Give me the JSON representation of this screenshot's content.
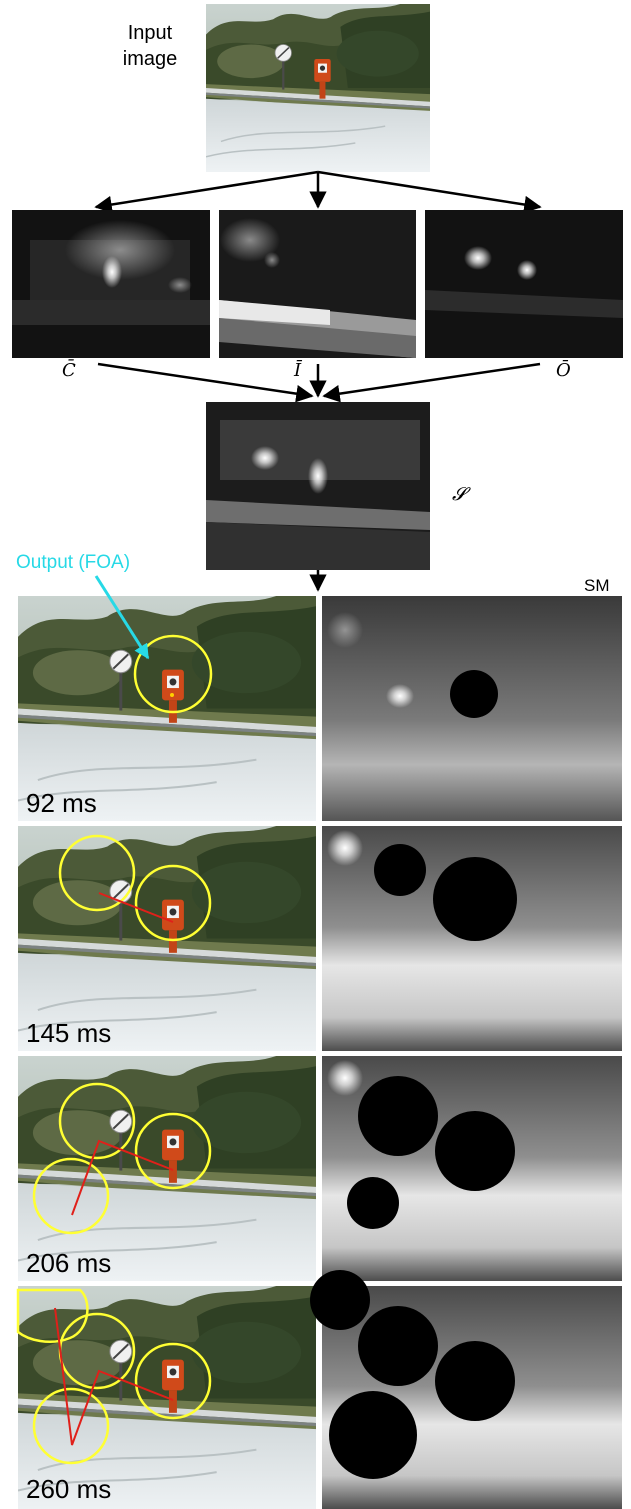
{
  "input_label": [
    "Input",
    "image"
  ],
  "maps": {
    "color": "C̄",
    "intensity": "Ī",
    "orientation": "Ō",
    "saliency": "𝓢"
  },
  "output_label": "Output (FOA)",
  "sm_label": "SM",
  "frames": [
    {
      "time": "92 ms"
    },
    {
      "time": "145 ms"
    },
    {
      "time": "206 ms"
    },
    {
      "time": "260 ms"
    }
  ],
  "colors": {
    "fixation_circle": "#ffff33",
    "scanpath": "#e0201a",
    "output_arrow": "#27d9e6"
  }
}
